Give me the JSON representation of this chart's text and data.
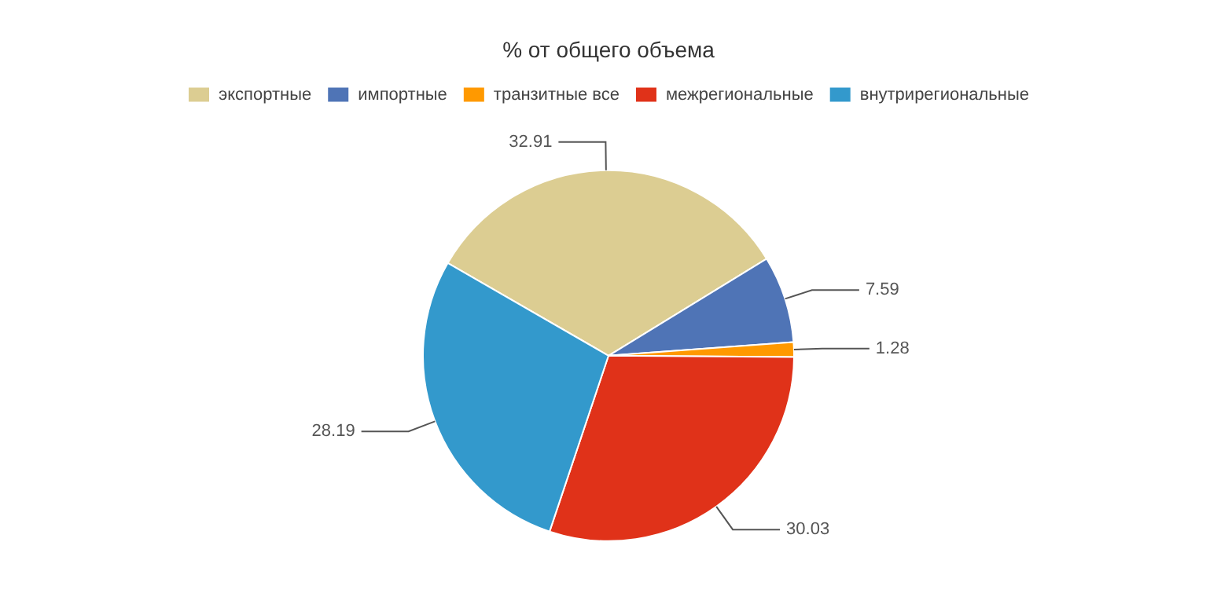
{
  "chart_data": {
    "type": "pie",
    "title": "% от общего объема",
    "legend": "top",
    "categories": [
      "экспортные",
      "импортные",
      "транзитные все",
      "межрегиональные",
      "внутрирегиональные"
    ],
    "values": [
      32.91,
      7.59,
      1.28,
      30.03,
      28.19
    ],
    "colors": [
      "#dccd92",
      "#4f74b6",
      "#ff9900",
      "#e03219",
      "#3399cc"
    ],
    "data_labels": true
  }
}
